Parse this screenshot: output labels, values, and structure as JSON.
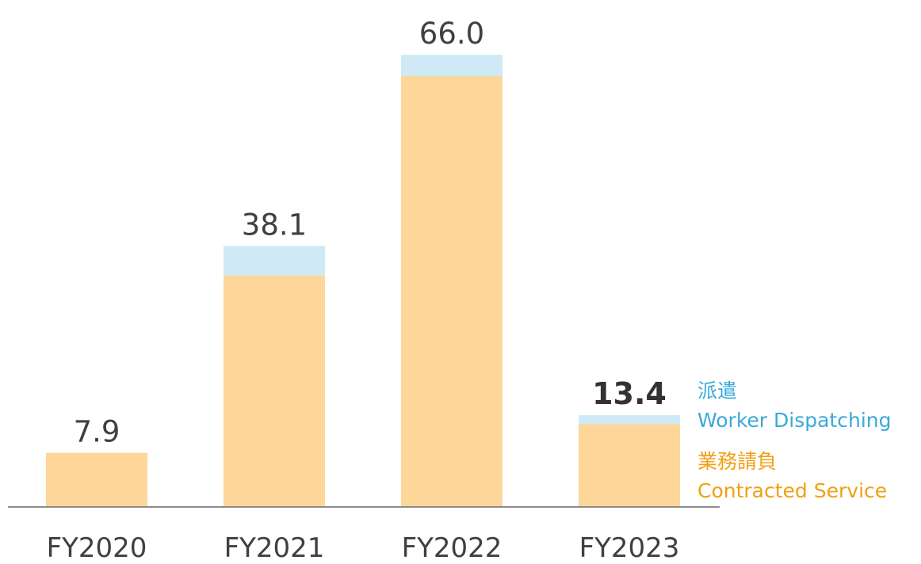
{
  "chart_data": {
    "type": "stacked-bar",
    "categories": [
      "FY2020",
      "FY2021",
      "FY2022",
      "FY2023"
    ],
    "series": [
      {
        "name": "Contracted Service",
        "name_ja": "業務請負",
        "color": "#fdd699",
        "text_color": "#f0a013",
        "values": [
          7.9,
          33.8,
          62.9,
          12.1
        ]
      },
      {
        "name": "Worker Dispatching",
        "name_ja": "派遣",
        "color": "#cfeaf6",
        "text_color": "#3aa9da",
        "values": [
          0,
          4.3,
          3.1,
          1.3
        ]
      }
    ],
    "totals": [
      7.9,
      38.1,
      66.0,
      13.4
    ],
    "total_labels": [
      "7.9",
      "38.1",
      "66.0",
      "13.4"
    ],
    "ylim": [
      0,
      74
    ]
  }
}
